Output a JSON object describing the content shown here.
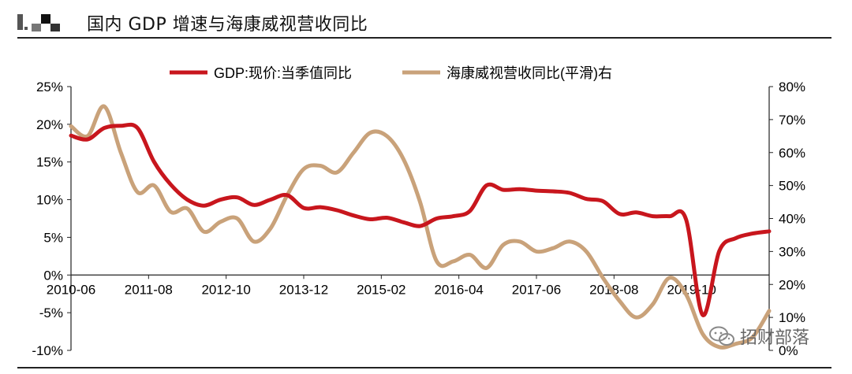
{
  "header": {
    "title": "国内 GDP 增速与海康威视营收同比"
  },
  "watermark": {
    "text": "招财部落",
    "icon": "wechat-icon"
  },
  "chart_data": {
    "type": "line",
    "title": "国内 GDP 增速与海康威视营收同比",
    "x_tick_labels": [
      "2010-06",
      "2011-08",
      "2012-10",
      "2013-12",
      "2015-02",
      "2016-04",
      "2017-06",
      "2018-08",
      "2019-10"
    ],
    "y_left": {
      "ticks": [
        "-10%",
        "-5%",
        "0%",
        "5%",
        "10%",
        "15%",
        "20%",
        "25%"
      ],
      "range": [
        -10,
        25
      ]
    },
    "y_right": {
      "ticks": [
        "0%",
        "10%",
        "20%",
        "30%",
        "40%",
        "50%",
        "60%",
        "70%",
        "80%"
      ],
      "range": [
        0,
        80
      ]
    },
    "legend_position": "top",
    "grid": false,
    "series": [
      {
        "name": "GDP:现价:当季值同比",
        "axis": "left",
        "color": "#c8161d",
        "x": [
          "2010-06",
          "2010-09",
          "2010-12",
          "2011-03",
          "2011-06",
          "2011-09",
          "2011-12",
          "2012-03",
          "2012-06",
          "2012-09",
          "2012-12",
          "2013-03",
          "2013-06",
          "2013-09",
          "2013-12",
          "2014-03",
          "2014-06",
          "2014-09",
          "2014-12",
          "2015-03",
          "2015-06",
          "2015-09",
          "2015-12",
          "2016-03",
          "2016-06",
          "2016-09",
          "2016-12",
          "2017-03",
          "2017-06",
          "2017-09",
          "2017-12",
          "2018-03",
          "2018-06",
          "2018-09",
          "2018-12",
          "2019-03",
          "2019-06",
          "2019-09",
          "2019-12",
          "2020-03",
          "2020-06",
          "2020-09",
          "2020-12"
        ],
        "values": [
          18.5,
          18.0,
          19.5,
          19.8,
          19.5,
          15.0,
          12.0,
          10.0,
          9.2,
          10.0,
          10.3,
          9.3,
          10.0,
          10.6,
          8.9,
          9.0,
          8.6,
          7.9,
          7.4,
          7.6,
          7.0,
          6.5,
          7.5,
          7.8,
          8.5,
          11.9,
          11.3,
          11.4,
          11.2,
          11.1,
          10.9,
          10.1,
          9.8,
          8.1,
          8.3,
          7.8,
          7.8,
          7.4,
          -5.3,
          3.2,
          4.9,
          5.5,
          5.8
        ]
      },
      {
        "name": "海康威视营收同比(平滑)右",
        "axis": "right",
        "color": "#c9a27a",
        "x": [
          "2010-06",
          "2010-09",
          "2010-12",
          "2011-03",
          "2011-06",
          "2011-09",
          "2011-12",
          "2012-03",
          "2012-06",
          "2012-09",
          "2012-12",
          "2013-03",
          "2013-06",
          "2013-09",
          "2013-12",
          "2014-03",
          "2014-06",
          "2014-09",
          "2014-12",
          "2015-03",
          "2015-06",
          "2015-09",
          "2015-12",
          "2016-03",
          "2016-06",
          "2016-09",
          "2016-12",
          "2017-03",
          "2017-06",
          "2017-09",
          "2017-12",
          "2018-03",
          "2018-06",
          "2018-09",
          "2018-12",
          "2019-03",
          "2019-06",
          "2019-09",
          "2019-12",
          "2020-03",
          "2020-06",
          "2020-09",
          "2020-12"
        ],
        "values": [
          68,
          65,
          74,
          60,
          48,
          50,
          42,
          43,
          36,
          39,
          40,
          33,
          37,
          47,
          55,
          56,
          54,
          60,
          66,
          65,
          58,
          45,
          27,
          27,
          29,
          25,
          32,
          33,
          30,
          31,
          33,
          30,
          22,
          15,
          10,
          14,
          22,
          17,
          5,
          1,
          2,
          4,
          12
        ]
      }
    ]
  }
}
